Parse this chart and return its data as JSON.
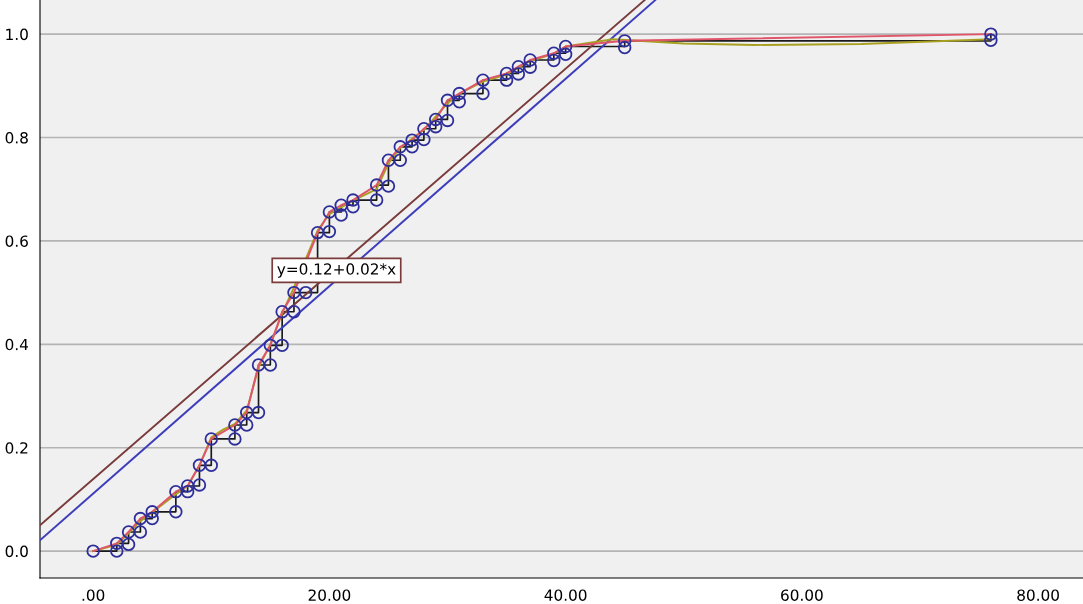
{
  "chart_data": {
    "type": "scatter",
    "xlim": [
      -4.5,
      83.8
    ],
    "ylim": [
      -0.052,
      1.066
    ],
    "xticks": [
      {
        "value": 0,
        "label": ".00"
      },
      {
        "value": 20,
        "label": "20.00"
      },
      {
        "value": 40,
        "label": "40.00"
      },
      {
        "value": 60,
        "label": "60.00"
      },
      {
        "value": 80,
        "label": "80.00"
      }
    ],
    "yticks": [
      {
        "value": 0,
        "label": "0.0"
      },
      {
        "value": 0.2,
        "label": "0.2"
      },
      {
        "value": 0.4,
        "label": "0.4"
      },
      {
        "value": 0.6,
        "label": "0.6"
      },
      {
        "value": 0.8,
        "label": "0.8"
      },
      {
        "value": 1.0,
        "label": "1.0"
      }
    ],
    "grid": "y",
    "annotations": [
      {
        "text": "y=0.12+0.02*x",
        "x": 20.6,
        "y": 0.543
      }
    ],
    "series": [
      {
        "type": "line",
        "color": "#7a3b3b",
        "x": [
          -4.5,
          46.7
        ],
        "values": [
          0.05,
          1.066
        ]
      },
      {
        "type": "line",
        "color": "#3d3dbb",
        "x": [
          -4.5,
          47.6
        ],
        "values": [
          0.021,
          1.066
        ]
      },
      {
        "type": "step",
        "color": "#1a1a1a",
        "x": [
          0,
          2,
          3,
          4,
          5,
          7,
          8,
          9,
          10,
          12,
          13,
          14,
          15,
          16,
          17,
          19,
          20,
          21,
          22,
          24,
          25,
          26,
          27,
          28,
          29,
          30,
          31,
          33,
          35,
          36,
          37,
          39,
          40,
          45,
          76
        ],
        "values": [
          0,
          0.015,
          0.037,
          0.063,
          0.076,
          0.115,
          0.126,
          0.166,
          0.217,
          0.244,
          0.268,
          0.36,
          0.398,
          0.463,
          0.5,
          0.616,
          0.656,
          0.669,
          0.679,
          0.708,
          0.756,
          0.782,
          0.795,
          0.817,
          0.835,
          0.872,
          0.885,
          0.911,
          0.924,
          0.937,
          0.95,
          0.963,
          0.976,
          0.987,
          1.0
        ]
      },
      {
        "type": "line",
        "color": "#a8a020",
        "x": [
          0,
          2,
          3,
          4,
          5,
          7,
          8,
          9,
          10,
          11,
          12,
          13,
          14,
          15,
          16,
          17,
          19,
          20,
          22,
          24,
          25,
          26,
          28,
          30,
          31,
          33,
          35,
          37,
          39,
          40,
          44,
          50,
          56,
          65,
          76
        ],
        "values": [
          0,
          0.012,
          0.035,
          0.058,
          0.075,
          0.11,
          0.126,
          0.166,
          0.22,
          0.235,
          0.246,
          0.272,
          0.355,
          0.4,
          0.46,
          0.51,
          0.62,
          0.652,
          0.678,
          0.7,
          0.75,
          0.78,
          0.815,
          0.866,
          0.885,
          0.908,
          0.922,
          0.948,
          0.962,
          0.976,
          0.99,
          0.982,
          0.979,
          0.981,
          0.99
        ]
      },
      {
        "type": "line",
        "color": "#e0556a",
        "x": [
          0,
          2,
          3,
          4,
          5,
          7,
          8,
          9,
          10,
          12,
          13,
          14,
          15,
          16,
          17,
          19,
          20,
          21,
          22,
          24,
          25,
          26,
          27,
          28,
          29,
          30,
          31,
          33,
          35,
          36,
          37,
          39,
          40,
          45,
          76
        ],
        "values": [
          0,
          0.015,
          0.037,
          0.063,
          0.076,
          0.115,
          0.126,
          0.166,
          0.217,
          0.244,
          0.268,
          0.36,
          0.398,
          0.463,
          0.5,
          0.616,
          0.656,
          0.669,
          0.679,
          0.708,
          0.756,
          0.782,
          0.795,
          0.817,
          0.835,
          0.872,
          0.885,
          0.911,
          0.924,
          0.937,
          0.95,
          0.963,
          0.976,
          0.987,
          1.0
        ]
      },
      {
        "marker": "circle",
        "color": "#2e2e9a",
        "x": [
          0,
          2,
          3,
          4,
          5,
          7,
          8,
          9,
          10,
          12,
          13,
          14,
          15,
          16,
          17,
          19,
          20,
          21,
          22,
          24,
          25,
          26,
          27,
          28,
          29,
          30,
          31,
          33,
          35,
          36,
          37,
          39,
          40,
          45,
          76
        ],
        "values": [
          0,
          0.015,
          0.037,
          0.063,
          0.076,
          0.115,
          0.126,
          0.166,
          0.217,
          0.244,
          0.268,
          0.36,
          0.398,
          0.463,
          0.5,
          0.616,
          0.656,
          0.669,
          0.679,
          0.708,
          0.756,
          0.782,
          0.795,
          0.817,
          0.835,
          0.872,
          0.885,
          0.911,
          0.924,
          0.937,
          0.95,
          0.963,
          0.976,
          0.987,
          1.0
        ]
      },
      {
        "marker": "circle",
        "color": "#2e2e9a",
        "x": [
          2,
          3,
          4,
          5,
          7,
          8,
          9,
          10,
          12,
          13,
          14,
          15,
          16,
          17,
          18,
          20,
          21,
          22,
          24,
          25,
          26,
          27,
          28,
          29,
          30,
          31,
          33,
          35,
          36,
          37,
          39,
          40,
          45,
          76
        ],
        "values": [
          0,
          0.013,
          0.037,
          0.063,
          0.076,
          0.115,
          0.128,
          0.166,
          0.217,
          0.244,
          0.268,
          0.36,
          0.398,
          0.463,
          0.5,
          0.618,
          0.65,
          0.666,
          0.679,
          0.706,
          0.756,
          0.782,
          0.796,
          0.821,
          0.833,
          0.869,
          0.885,
          0.911,
          0.923,
          0.936,
          0.949,
          0.961,
          0.974,
          0.988
        ]
      }
    ]
  }
}
